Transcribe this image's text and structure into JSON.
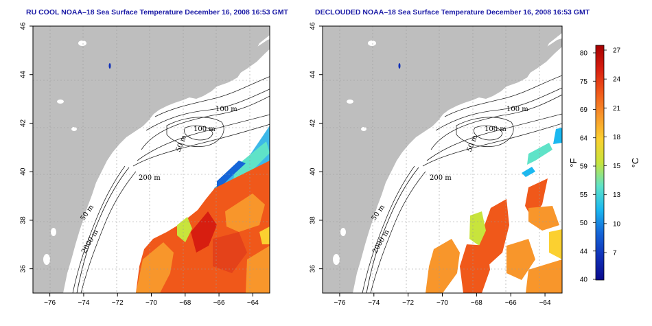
{
  "left_panel": {
    "title": "RU COOL NOAA–18 Sea Surface Temperature December 16, 2008 16:53 GMT"
  },
  "right_panel": {
    "title": "DECLOUDED NOAA–18 Sea Surface Temperature December 16, 2008 16:53 GMT"
  },
  "axes": {
    "x_ticks": [
      "−76",
      "−74",
      "−72",
      "−70",
      "−68",
      "−66",
      "−64"
    ],
    "x_values": [
      -76,
      -74,
      -72,
      -70,
      -68,
      -66,
      -64
    ],
    "y_ticks": [
      "36",
      "38",
      "40",
      "42",
      "44",
      "46"
    ],
    "y_values": [
      36,
      38,
      40,
      42,
      44,
      46
    ],
    "lon_range": [
      -77,
      -63
    ],
    "lat_range": [
      35,
      46
    ],
    "grid": "dotted"
  },
  "contour_labels": {
    "c100a": "100 m",
    "c100b": "100 m",
    "c50a": "50 m",
    "c200": "200 m",
    "c50b": "50 m",
    "c2000": "2000 m"
  },
  "colorbar": {
    "fahrenheit_unit": "°F",
    "celsius_unit": "°C",
    "fahrenheit_ticks": [
      "80",
      "75",
      "69",
      "64",
      "59",
      "55",
      "50",
      "44",
      "40"
    ],
    "celsius_ticks": [
      "27",
      "24",
      "21",
      "18",
      "15",
      "13",
      "10",
      "7"
    ],
    "colors": [
      "#a50000",
      "#d71e10",
      "#f0581a",
      "#f8962b",
      "#fbd030",
      "#c8e43c",
      "#5fe3c8",
      "#1bb8f0",
      "#1565d8",
      "#1030b8",
      "#0a0a8c"
    ]
  },
  "colors": {
    "land": "#bebebe",
    "ocean": "#ffffff",
    "title": "#1a1aa6"
  }
}
